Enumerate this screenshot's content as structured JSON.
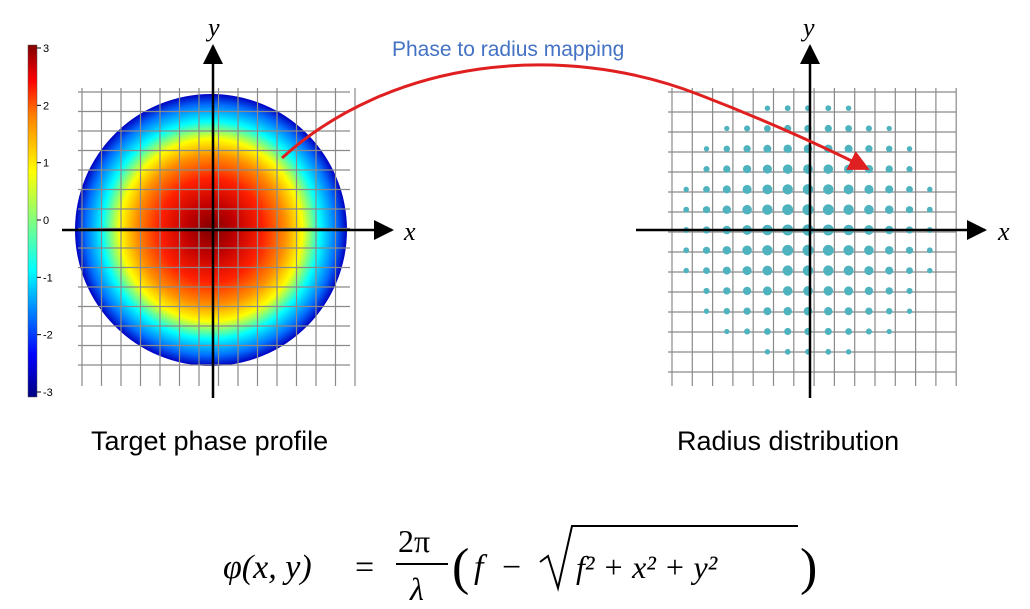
{
  "left_panel": {
    "caption": "Target phase profile",
    "x_axis_label": "x",
    "y_axis_label": "y",
    "colorbar": {
      "ticks": [
        "3",
        "2",
        "1",
        "0",
        "-1",
        "-2",
        "-3"
      ],
      "colors": [
        "#000080",
        "#0000ff",
        "#00ffff",
        "#ffff00",
        "#ff8000",
        "#ff0000",
        "#800000"
      ]
    }
  },
  "right_panel": {
    "caption": "Radius distribution",
    "x_axis_label": "x",
    "y_axis_label": "y",
    "dot_color": "#4fb3bf"
  },
  "mapping": {
    "label": "Phase to radius mapping",
    "arrow_color": "#e02020",
    "label_color": "#4472c4"
  },
  "formula": {
    "lhs": "φ(x, y)",
    "equals": "=",
    "numerator": "2π",
    "denominator": "λ",
    "f": "f",
    "minus": "−",
    "radicand": "f² + x² + y²"
  }
}
